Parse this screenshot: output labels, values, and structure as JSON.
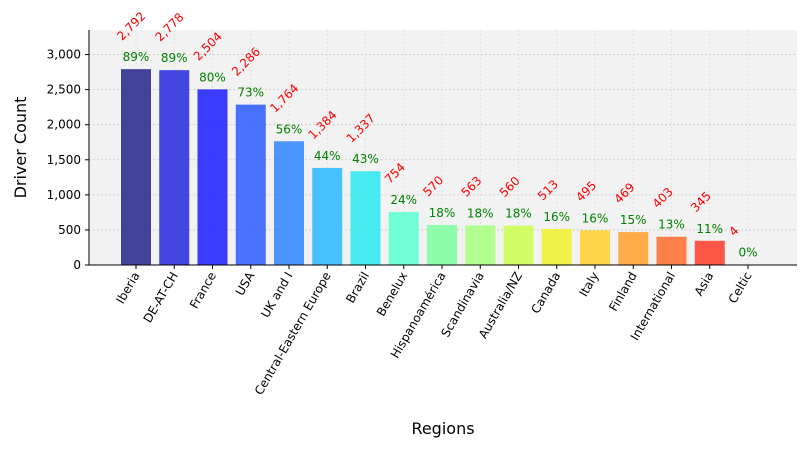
{
  "chart_data": {
    "type": "bar",
    "title": "",
    "xlabel": "Regions",
    "ylabel": "Driver Count",
    "ylim": [
      0,
      3350
    ],
    "yticks": [
      0,
      500,
      1000,
      1500,
      2000,
      2500,
      3000
    ],
    "ytick_labels": [
      "0",
      "500",
      "1,000",
      "1,500",
      "2,000",
      "2,500",
      "3,000"
    ],
    "grid": true,
    "categories": [
      "Iberia",
      "DE-AT-CH",
      "France",
      "USA",
      "UK and I",
      "Central-Eastern Europe",
      "Brazil",
      "Benelux",
      "Hispanoamérica",
      "Scandinavia",
      "Australia/NZ",
      "Canada",
      "Italy",
      "Finland",
      "International",
      "Asia",
      "Celtic"
    ],
    "values": [
      2792,
      2778,
      2504,
      2286,
      1764,
      1384,
      1337,
      754,
      570,
      563,
      560,
      513,
      495,
      469,
      403,
      345,
      4
    ],
    "value_labels": [
      "2,792",
      "2,778",
      "2,504",
      "2,286",
      "1,764",
      "1,384",
      "1,337",
      "754",
      "570",
      "563",
      "560",
      "513",
      "495",
      "469",
      "403",
      "345",
      "4"
    ],
    "percent_labels": [
      "89%",
      "89%",
      "80%",
      "73%",
      "56%",
      "44%",
      "43%",
      "24%",
      "18%",
      "18%",
      "18%",
      "16%",
      "16%",
      "15%",
      "13%",
      "11%",
      "0%"
    ],
    "bar_colors": [
      "#2a2a8c",
      "#2e2ee0",
      "#2222ff",
      "#3060ff",
      "#3388ff",
      "#30b8ff",
      "#30e8f0",
      "#5cffd0",
      "#80ffa0",
      "#a8ff80",
      "#ccff50",
      "#f0f030",
      "#ffd030",
      "#ffa030",
      "#ff7030",
      "#ff4030",
      "#e00000"
    ],
    "value_label_color": "#ff0000",
    "percent_label_color": "#008000",
    "plot_background": "#f2f2f2"
  }
}
